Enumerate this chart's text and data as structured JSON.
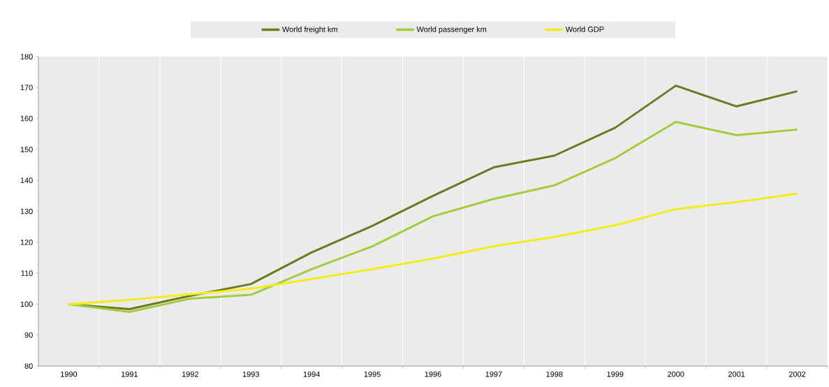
{
  "chart_data": {
    "type": "line",
    "categories": [
      "1990",
      "1991",
      "1992",
      "1993",
      "1994",
      "1995",
      "1996",
      "1997",
      "1998",
      "1999",
      "2000",
      "2001",
      "2002"
    ],
    "series": [
      {
        "name": "World freight km",
        "color": "#6b7a1f",
        "values": [
          100,
          98.4,
          102.7,
          106.5,
          116.7,
          125.3,
          135,
          144.2,
          148,
          157,
          170.6,
          163.9,
          168.8
        ]
      },
      {
        "name": "World passenger km",
        "color": "#a3cc3a",
        "values": [
          100,
          97.5,
          101.8,
          103,
          111.3,
          118.7,
          128.4,
          134,
          138.4,
          147.2,
          158.9,
          154.6,
          156.4
        ]
      },
      {
        "name": "World GDP",
        "color": "#f5eb1a",
        "values": [
          100,
          101.4,
          103.2,
          105,
          108.1,
          111.3,
          114.7,
          118.7,
          121.7,
          125.5,
          130.7,
          133,
          135.7
        ]
      }
    ],
    "ylim": [
      80,
      180
    ],
    "yticks": [
      80,
      90,
      100,
      110,
      120,
      130,
      140,
      150,
      160,
      170,
      180
    ],
    "grid": "x",
    "legend": "top",
    "marker": "none",
    "line_style": "solid"
  }
}
